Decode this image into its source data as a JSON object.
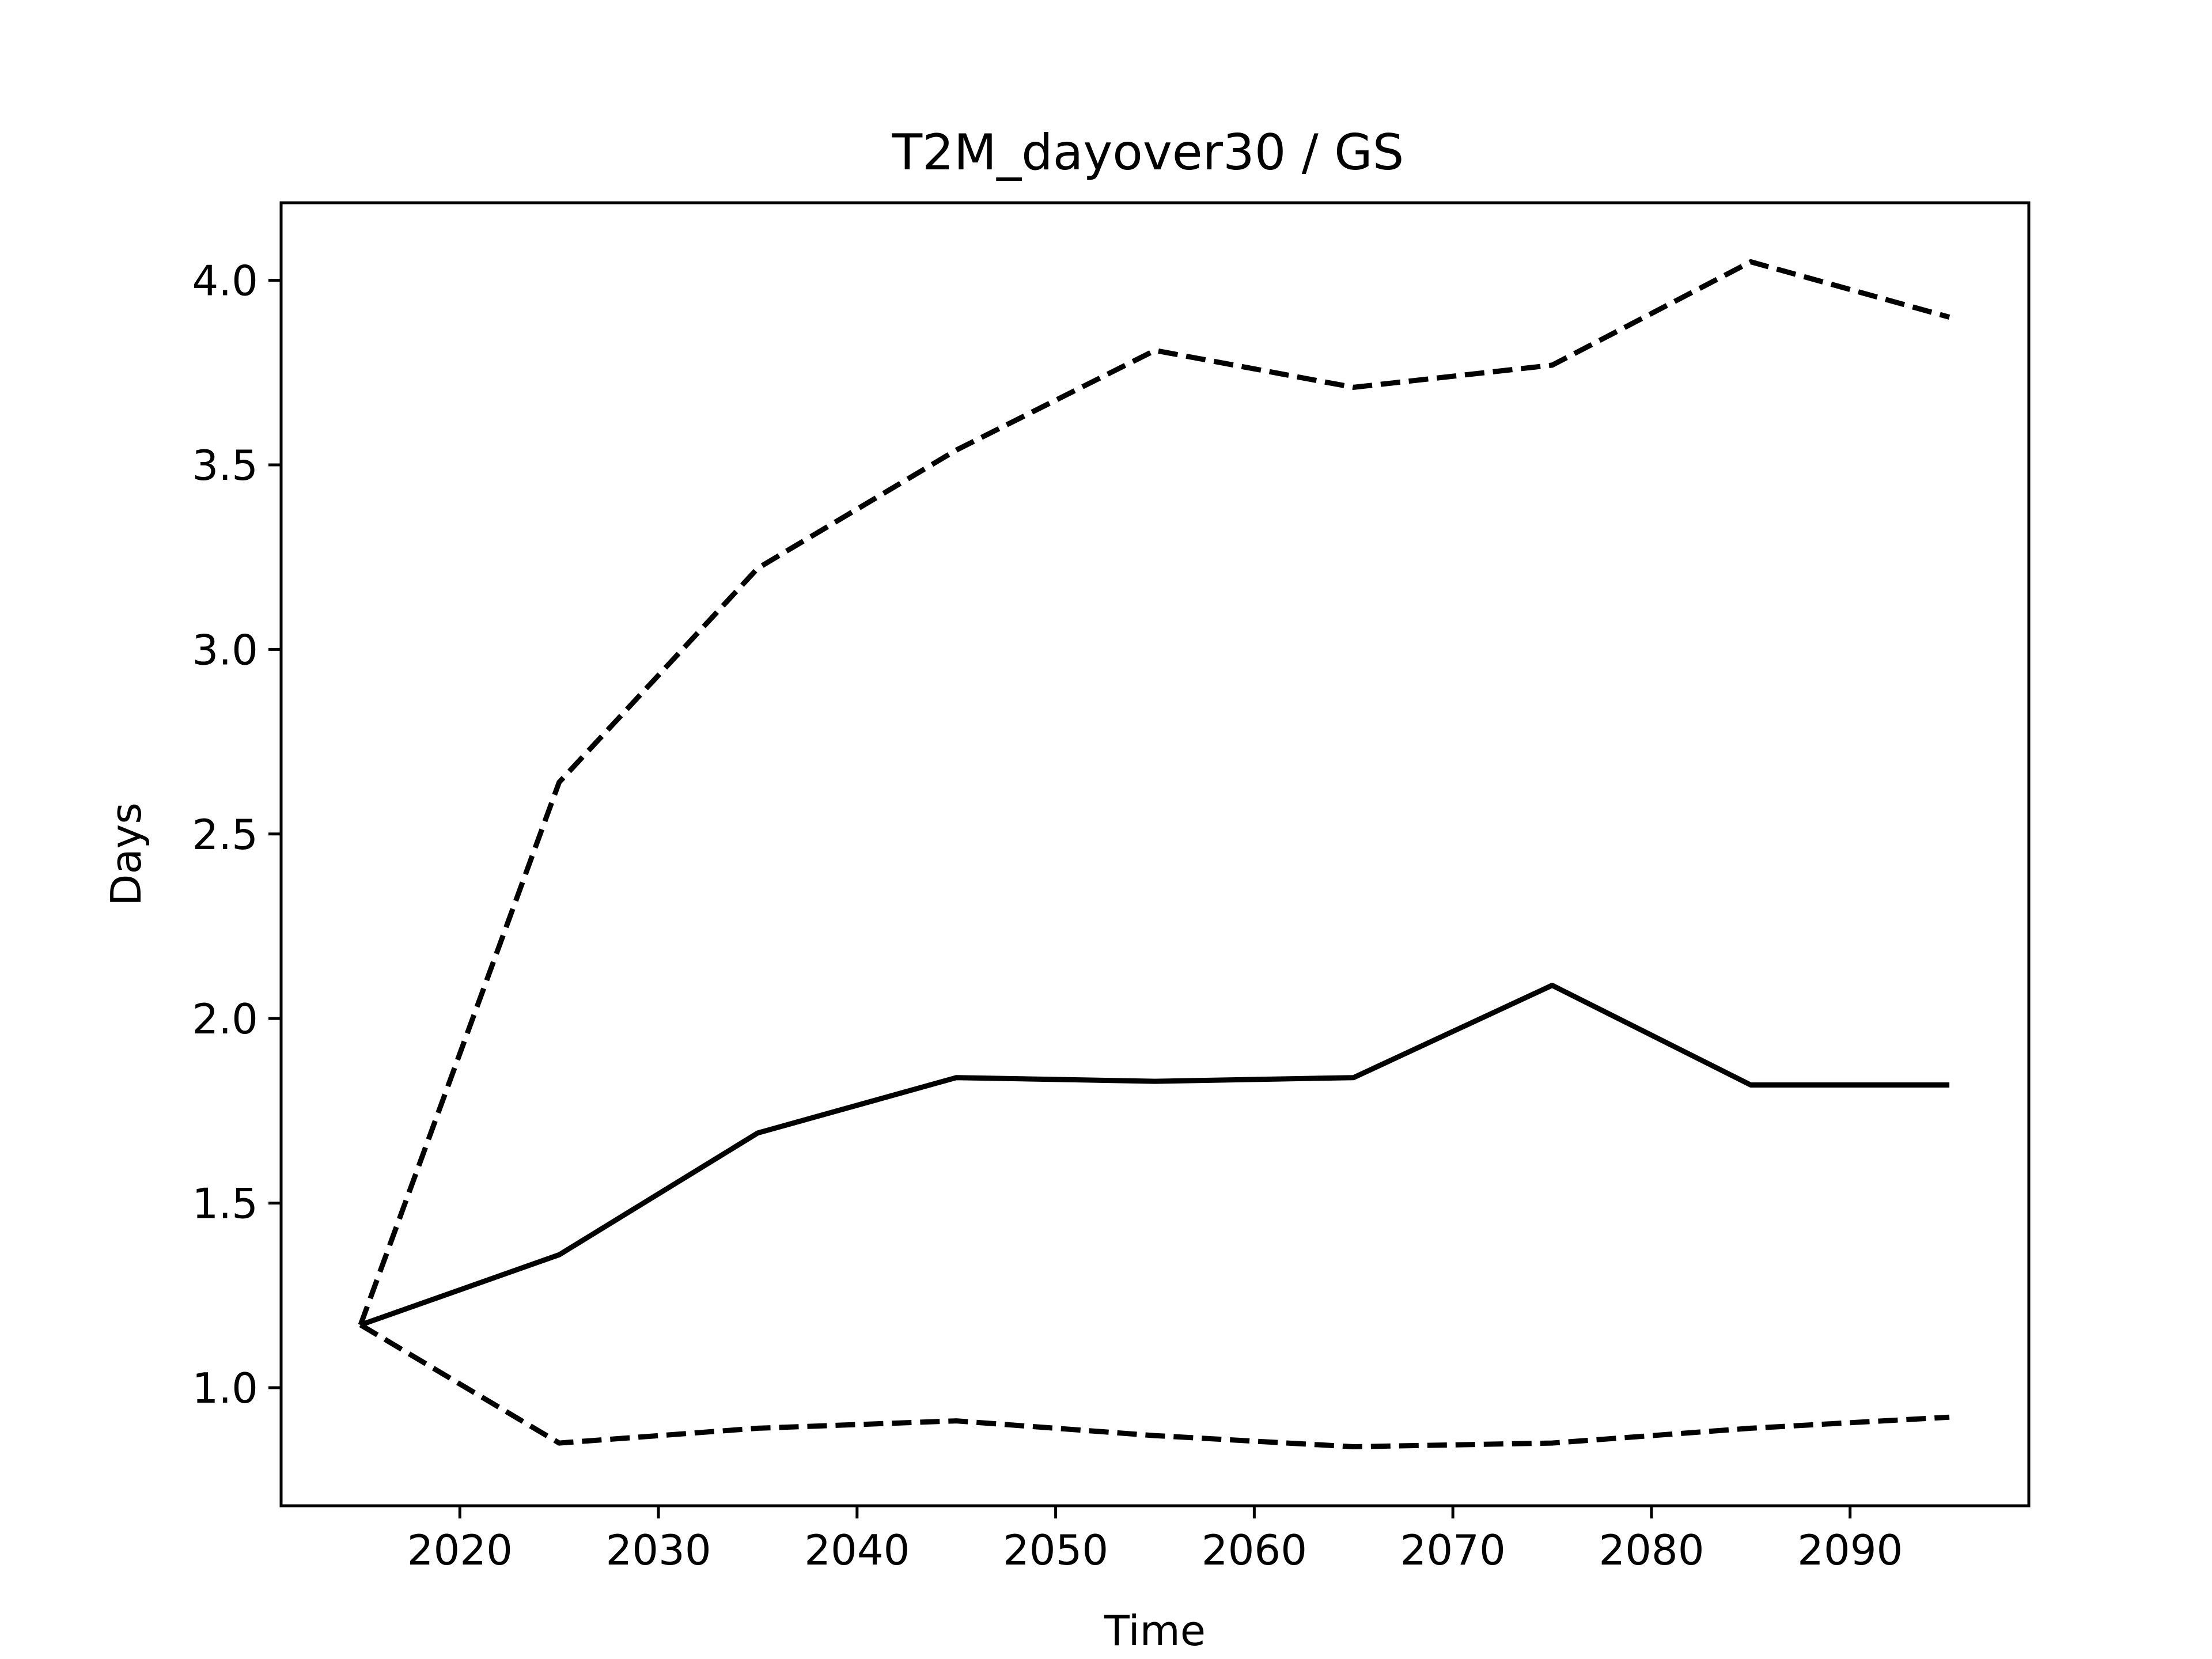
{
  "chart_data": {
    "type": "line",
    "title": "T2M_dayover30 / GS",
    "xlabel": "Time",
    "ylabel": "Days",
    "xlim": [
      2011,
      2099
    ],
    "ylim": [
      0.68,
      4.21
    ],
    "xticks": [
      2020,
      2030,
      2040,
      2050,
      2060,
      2070,
      2080,
      2090
    ],
    "xtick_labels": [
      "2020",
      "2030",
      "2040",
      "2050",
      "2060",
      "2070",
      "2080",
      "2090"
    ],
    "yticks": [
      1.0,
      1.5,
      2.0,
      2.5,
      3.0,
      3.5,
      4.0
    ],
    "ytick_labels": [
      "1.0",
      "1.5",
      "2.0",
      "2.5",
      "3.0",
      "3.5",
      "4.0"
    ],
    "grid": false,
    "x": [
      2015,
      2025,
      2035,
      2045,
      2055,
      2065,
      2075,
      2085,
      2095
    ],
    "series": [
      {
        "style": "dashed",
        "color": "#000000",
        "values": [
          1.17,
          2.64,
          3.22,
          3.54,
          3.81,
          3.71,
          3.77,
          4.05,
          3.9
        ]
      },
      {
        "style": "solid",
        "color": "#000000",
        "values": [
          1.17,
          1.36,
          1.69,
          1.84,
          1.83,
          1.84,
          2.09,
          1.82,
          1.82
        ]
      },
      {
        "style": "dashed",
        "color": "#000000",
        "values": [
          1.17,
          0.85,
          0.89,
          0.91,
          0.87,
          0.84,
          0.85,
          0.89,
          0.92
        ]
      }
    ]
  }
}
